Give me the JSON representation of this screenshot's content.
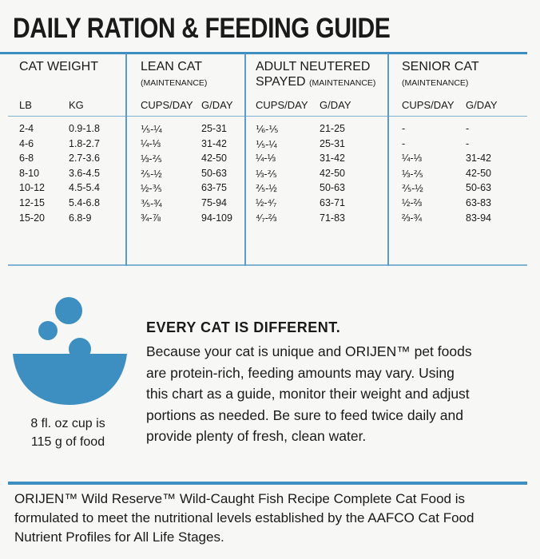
{
  "header": {
    "title": "DAILY RATION & FEEDING GUIDE"
  },
  "table": {
    "groups": [
      {
        "title": "CAT WEIGHT"
      },
      {
        "title": "LEAN CAT",
        "sub": "(MAINTENANCE)"
      },
      {
        "title_lines": [
          "ADULT NEUTERED",
          "SPAYED"
        ],
        "sub": "(MAINTENANCE)"
      },
      {
        "title": "SENIOR CAT",
        "sub": "(MAINTENANCE)"
      }
    ],
    "columns": [
      "LB",
      "KG",
      "CUPS/DAY",
      "G/DAY",
      "CUPS/DAY",
      "G/DAY",
      "CUPS/DAY",
      "G/DAY"
    ],
    "rows": [
      [
        "2-4",
        "0.9-1.8",
        "⅕-¼",
        "25-31",
        "⅙-⅕",
        "21-25",
        "-",
        "-"
      ],
      [
        "4-6",
        "1.8-2.7",
        "¼-⅓",
        "31-42",
        "⅕-¼",
        "25-31",
        "-",
        "-"
      ],
      [
        "6-8",
        "2.7-3.6",
        "⅓-⅖",
        "42-50",
        "¼-⅓",
        "31-42",
        "¼-⅓",
        "31-42"
      ],
      [
        "8-10",
        "3.6-4.5",
        "⅖-½",
        "50-63",
        "⅓-⅖",
        "42-50",
        "⅓-⅖",
        "42-50"
      ],
      [
        "10-12",
        "4.5-5.4",
        "½-⅗",
        "63-75",
        "⅖-½",
        "50-63",
        "⅖-½",
        "50-63"
      ],
      [
        "12-15",
        "5.4-6.8",
        "⅗-¾",
        "75-94",
        "½-⁴⁄₇",
        "63-71",
        "½-⅔",
        "63-83"
      ],
      [
        "15-20",
        "6.8-9",
        "¾-⅞",
        "94-109",
        "⁴⁄₇-⅔",
        "71-83",
        "⅔-¾",
        "83-94"
      ]
    ]
  },
  "cup_note": [
    "8 fl. oz cup is",
    "115 g of food"
  ],
  "info": {
    "heading": "EVERY CAT IS DIFFERENT.",
    "lines": [
      "Because your cat is unique and ORIJEN™ pet foods",
      "are protein-rich, feeding amounts may vary. Using",
      "this chart as a guide, monitor their weight and adjust",
      "portions as needed. Be sure to feed twice daily and",
      "provide plenty of fresh, clean water."
    ]
  },
  "footer": {
    "lines": [
      "ORIJEN™ Wild Reserve™ Wild-Caught Fish Recipe Complete Cat Food is",
      "formulated to meet the nutritional levels established by the AAFCO Cat Food",
      "Nutrient Profiles for All Life Stages."
    ]
  }
}
